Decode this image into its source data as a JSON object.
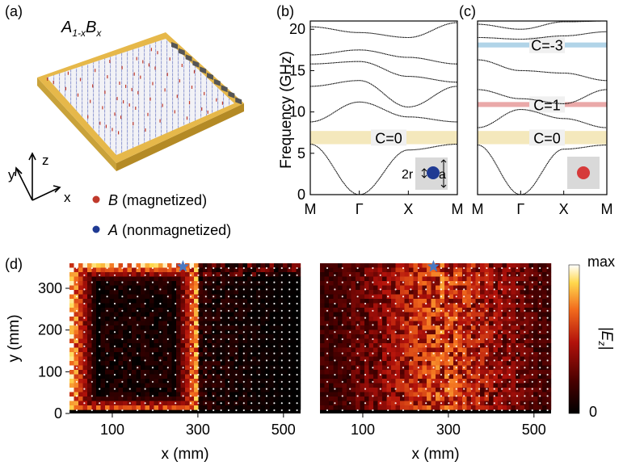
{
  "panel_labels": {
    "a": "(a)",
    "b": "(b)",
    "c": "(c)",
    "d": "(d)"
  },
  "panel_a": {
    "formula": {
      "base1": "A",
      "sub1": "1-x",
      "base2": "B",
      "sub2": "x"
    },
    "axes": {
      "x": "x",
      "y": "y",
      "z": "z"
    },
    "legend": [
      {
        "symbol": "B",
        "text": " (magnetized)",
        "color": "#c0392b"
      },
      {
        "symbol": "A",
        "text": " (nonmagnetized)",
        "color": "#1f3a93"
      }
    ],
    "colors": {
      "frame": "#e6b84a",
      "plate": "#f2f2f6",
      "edge_ports": "#555555"
    }
  },
  "chart_data": [
    {
      "type": "line",
      "panel": "(b)",
      "ylabel": "Frequency (GHz)",
      "ylim": [
        0,
        21
      ],
      "yticks": [
        "0",
        "5",
        "10",
        "15",
        "20"
      ],
      "xticks": [
        "M",
        "Γ",
        "X",
        "M"
      ],
      "bands": [
        {
          "name": "band 1",
          "values": [
            6.1,
            0,
            5.4,
            6.1
          ]
        },
        {
          "name": "band 2",
          "values": [
            8.8,
            11.2,
            9.4,
            8.8
          ]
        },
        {
          "name": "band 3",
          "values": [
            13.1,
            13.8,
            10.6,
            13.1
          ]
        },
        {
          "name": "band 4",
          "values": [
            15.8,
            16.1,
            14.3,
            13.6
          ]
        },
        {
          "name": "band 5",
          "values": [
            16.9,
            17.5,
            16.6,
            15.8
          ]
        },
        {
          "name": "band 6",
          "values": [
            20.3,
            19.6,
            19.0,
            20.8
          ]
        }
      ],
      "gaps": [
        {
          "range": [
            6.1,
            7.7
          ],
          "label": "C=0",
          "color": "#f3e5b5"
        }
      ],
      "inset": {
        "labels": [
          "2r",
          "a"
        ],
        "dot_color": "#1f3a93"
      }
    },
    {
      "type": "line",
      "panel": "(c)",
      "ylim": [
        0,
        21
      ],
      "xticks": [
        "M",
        "Γ",
        "X",
        "M"
      ],
      "bands": [
        {
          "name": "band 1",
          "values": [
            6.0,
            0,
            5.5,
            6.0
          ]
        },
        {
          "name": "band 2",
          "values": [
            8.1,
            10.3,
            9.2,
            8.1
          ]
        },
        {
          "name": "band 3",
          "values": [
            12.7,
            11.6,
            11.0,
            12.7
          ]
        },
        {
          "name": "band 4",
          "values": [
            16.3,
            15.0,
            14.7,
            13.8
          ]
        },
        {
          "name": "band 5",
          "values": [
            19.0,
            18.8,
            19.2,
            19.7
          ]
        },
        {
          "name": "band 6",
          "values": [
            20.6,
            20.0,
            20.9,
            21.0
          ]
        }
      ],
      "gaps": [
        {
          "range": [
            6.1,
            7.7
          ],
          "label": "C=0",
          "color": "#f3e5b5"
        },
        {
          "range": [
            10.6,
            11.2
          ],
          "label": "C=1",
          "color": "#e8a0a0"
        },
        {
          "range": [
            17.8,
            18.4
          ],
          "label": "C=-3",
          "color": "#a9cfe6"
        }
      ],
      "inset": {
        "dot_color": "#d63a3a"
      }
    },
    {
      "type": "heatmap",
      "panel": "(d) left",
      "xlabel": "x (mm)",
      "ylabel": "y (mm)",
      "xlim": [
        0,
        540
      ],
      "ylim": [
        0,
        360
      ],
      "xticks": [
        "100",
        "300",
        "500"
      ],
      "yticks": [
        "0",
        "100",
        "200",
        "300"
      ],
      "source_x": 265,
      "pattern": "edge-confined (field along boundary of magnetized region)"
    },
    {
      "type": "heatmap",
      "panel": "(d) right",
      "xlabel": "x (mm)",
      "xlim": [
        0,
        540
      ],
      "ylim": [
        0,
        360
      ],
      "xticks": [
        "100",
        "300",
        "500"
      ],
      "source_x": 265,
      "pattern": "bulk (field spread throughout)"
    }
  ],
  "colorbar": {
    "max_label": "max",
    "min_label": "0",
    "quantity": "|E_z|",
    "colors": [
      "#000000",
      "#4a0000",
      "#b3120b",
      "#f26b1d",
      "#ffd84d",
      "#ffffff"
    ]
  },
  "star_color": "#4a78c2"
}
